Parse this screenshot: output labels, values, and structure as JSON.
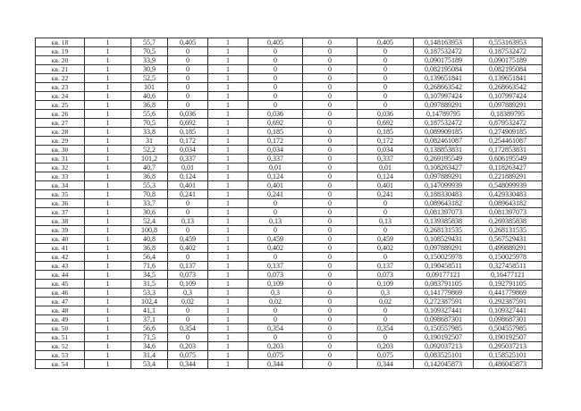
{
  "table": {
    "rows": [
      [
        "кв. 18",
        "1",
        "55,7",
        "0,405",
        "1",
        "0,405",
        "0",
        "0,405",
        "0,148163953",
        "0,553163953"
      ],
      [
        "кв. 19",
        "1",
        "70,5",
        "0",
        "1",
        "0",
        "0",
        "0",
        "0,187532472",
        "0,187532472"
      ],
      [
        "кв. 20",
        "1",
        "33,9",
        "0",
        "1",
        "0",
        "0",
        "0",
        "0,090175189",
        "0,090175189"
      ],
      [
        "кв. 21",
        "1",
        "30,9",
        "0",
        "1",
        "0",
        "0",
        "0",
        "0,082195084",
        "0,082195084"
      ],
      [
        "кв. 22",
        "1",
        "52,5",
        "0",
        "1",
        "0",
        "0",
        "0",
        "0,139651841",
        "0,139651841"
      ],
      [
        "кв. 23",
        "1",
        "101",
        "0",
        "1",
        "0",
        "0",
        "0",
        "0,268663542",
        "0,268663542"
      ],
      [
        "кв. 24",
        "1",
        "40,6",
        "0",
        "1",
        "0",
        "0",
        "0",
        "0,107997424",
        "0,107997424"
      ],
      [
        "кв. 25",
        "1",
        "36,8",
        "0",
        "1",
        "0",
        "0",
        "0",
        "0,097889291",
        "0,097889291"
      ],
      [
        "кв. 26",
        "1",
        "55,6",
        "0,036",
        "1",
        "0,036",
        "0",
        "0,036",
        "0,14789795",
        "0,18389795"
      ],
      [
        "кв. 27",
        "1",
        "70,5",
        "0,692",
        "1",
        "0,692",
        "0",
        "0,692",
        "0,187532472",
        "0,879532472"
      ],
      [
        "кв. 28",
        "1",
        "33,8",
        "0,185",
        "1",
        "0,185",
        "0",
        "0,185",
        "0,089909185",
        "0,274909185"
      ],
      [
        "кв. 29",
        "1",
        "31",
        "0,172",
        "1",
        "0,172",
        "0",
        "0,172",
        "0,082461087",
        "0,254461087"
      ],
      [
        "кв. 30",
        "1",
        "52,2",
        "0,034",
        "1",
        "0,034",
        "0",
        "0,034",
        "0,138853831",
        "0,172853831"
      ],
      [
        "кв. 31",
        "1",
        "101,2",
        "0,337",
        "1",
        "0,337",
        "0",
        "0,337",
        "0,269195549",
        "0,606195549"
      ],
      [
        "кв. 32",
        "1",
        "40,7",
        "0,01",
        "1",
        "0,01",
        "0",
        "0,01",
        "0,108263427",
        "0,118263427"
      ],
      [
        "кв. 33",
        "1",
        "36,8",
        "0,124",
        "1",
        "0,124",
        "0",
        "0,124",
        "0,097889291",
        "0,221889291"
      ],
      [
        "кв. 34",
        "1",
        "55,3",
        "0,401",
        "1",
        "0,401",
        "0",
        "0,401",
        "0,147099939",
        "0,548099939"
      ],
      [
        "кв. 35",
        "1",
        "70,8",
        "0,241",
        "1",
        "0,241",
        "0",
        "0,241",
        "0,188330483",
        "0,429330483"
      ],
      [
        "кв. 36",
        "1",
        "33,7",
        "0",
        "1",
        "0",
        "0",
        "0",
        "0,089643182",
        "0,089643182"
      ],
      [
        "кв. 37",
        "1",
        "30,6",
        "0",
        "1",
        "0",
        "0",
        "0",
        "0,081397073",
        "0,081397073"
      ],
      [
        "кв. 38",
        "1",
        "52,4",
        "0,13",
        "1",
        "0,13",
        "0",
        "0,13",
        "0,139385838",
        "0,269385838"
      ],
      [
        "кв. 39",
        "1",
        "100,8",
        "0",
        "1",
        "0",
        "0",
        "0",
        "0,268131535",
        "0,268131535"
      ],
      [
        "кв. 40",
        "1",
        "40,8",
        "0,459",
        "1",
        "0,459",
        "0",
        "0,459",
        "0,108529431",
        "0,567529431"
      ],
      [
        "кв. 41",
        "1",
        "36,8",
        "0,402",
        "1",
        "0,402",
        "0",
        "0,402",
        "0,097889291",
        "0,499889291"
      ],
      [
        "кв. 42",
        "1",
        "56,4",
        "0",
        "1",
        "0",
        "0",
        "0",
        "0,150025978",
        "0,150025978"
      ],
      [
        "кв. 43",
        "1",
        "71,6",
        "0,137",
        "1",
        "0,137",
        "0",
        "0,137",
        "0,190458511",
        "0,327458511"
      ],
      [
        "кв. 44",
        "1",
        "34,5",
        "0,073",
        "1",
        "0,073",
        "0",
        "0,073",
        "0,09177121",
        "0,16477121"
      ],
      [
        "кв. 45",
        "1",
        "31,5",
        "0,109",
        "1",
        "0,109",
        "0",
        "0,109",
        "0,083791105",
        "0,192791105"
      ],
      [
        "кв. 46",
        "1",
        "53,3",
        "0,3",
        "1",
        "0,3",
        "0",
        "0,3",
        "0,141779869",
        "0,441779869"
      ],
      [
        "кв. 47",
        "1",
        "102,4",
        "0,02",
        "1",
        "0,02",
        "0",
        "0,02",
        "0,272387591",
        "0,292387591"
      ],
      [
        "кв. 48",
        "1",
        "41,1",
        "0",
        "1",
        "0",
        "0",
        "0",
        "0,109327441",
        "0,109327441"
      ],
      [
        "кв. 49",
        "1",
        "37,1",
        "0",
        "1",
        "0",
        "0",
        "0",
        "0,098687301",
        "0,098687301"
      ],
      [
        "кв. 50",
        "1",
        "56,6",
        "0,354",
        "1",
        "0,354",
        "0",
        "0,354",
        "0,150557985",
        "0,504557985"
      ],
      [
        "кв. 51",
        "1",
        "71,5",
        "0",
        "1",
        "0",
        "0",
        "0",
        "0,190192507",
        "0,190192507"
      ],
      [
        "кв. 52",
        "1",
        "34,6",
        "0,203",
        "1",
        "0,203",
        "0",
        "0,203",
        "0,092037213",
        "0,295037213"
      ],
      [
        "кв. 53",
        "1",
        "31,4",
        "0,075",
        "1",
        "0,075",
        "0",
        "0,075",
        "0,083525101",
        "0,158525101"
      ],
      [
        "кв. 54",
        "1",
        "53,4",
        "0,344",
        "1",
        "0,344",
        "0",
        "0,344",
        "0,142045873",
        "0,486045873"
      ]
    ]
  }
}
